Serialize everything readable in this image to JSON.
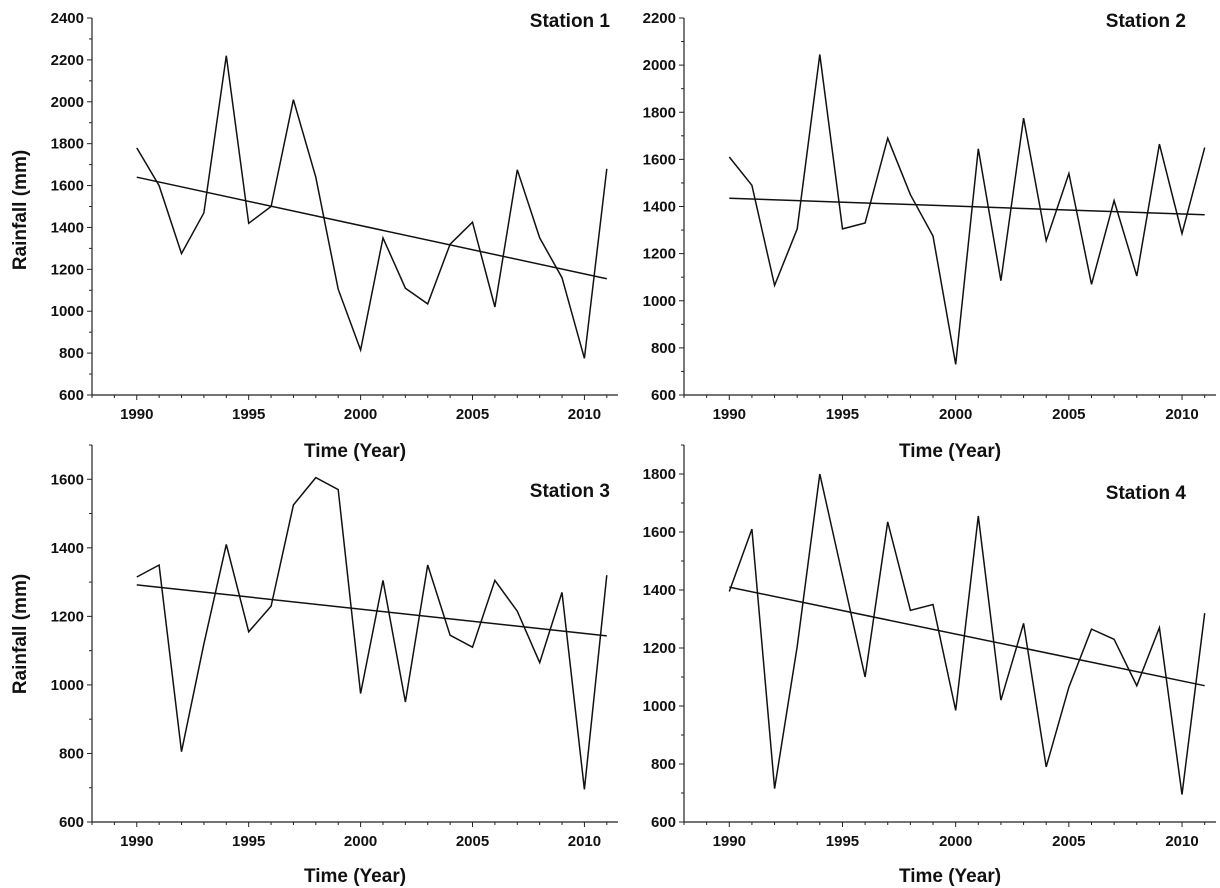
{
  "figure": {
    "ylabel": "Rainfall (mm)",
    "xlabel": "Time (Year)"
  },
  "chart_data": [
    {
      "type": "line",
      "title": "Station 1",
      "xlabel": "Time (Year)",
      "ylabel": "Rainfall (mm)",
      "xlim": [
        1988,
        2011.5
      ],
      "ylim": [
        600,
        2400
      ],
      "xticks": [
        1990,
        1995,
        2000,
        2005,
        2010
      ],
      "yticks": [
        600,
        800,
        1000,
        1200,
        1400,
        1600,
        1800,
        2000,
        2200,
        2400
      ],
      "x": [
        1990,
        1991,
        1992,
        1993,
        1994,
        1995,
        1996,
        1997,
        1998,
        1999,
        2000,
        2001,
        2002,
        2003,
        2004,
        2005,
        2006,
        2007,
        2008,
        2009,
        2010,
        2011
      ],
      "series": [
        {
          "values": [
            1780,
            1600,
            1275,
            1470,
            2220,
            1420,
            1500,
            2010,
            1640,
            1105,
            815,
            1350,
            1110,
            1035,
            1320,
            1425,
            1020,
            1675,
            1350,
            1160,
            775,
            1680
          ]
        }
      ],
      "trend": {
        "x": [
          1990,
          2011
        ],
        "y": [
          1640,
          1155
        ]
      },
      "grid": false,
      "legend": "none"
    },
    {
      "type": "line",
      "title": "Station 2",
      "xlabel": "Time (Year)",
      "ylabel": "",
      "xlim": [
        1988,
        2011.5
      ],
      "ylim": [
        600,
        2200
      ],
      "xticks": [
        1990,
        1995,
        2000,
        2005,
        2010
      ],
      "yticks": [
        600,
        800,
        1000,
        1200,
        1400,
        1600,
        1800,
        2000,
        2200
      ],
      "x": [
        1990,
        1991,
        1992,
        1993,
        1994,
        1995,
        1996,
        1997,
        1998,
        1999,
        2000,
        2001,
        2002,
        2003,
        2004,
        2005,
        2006,
        2007,
        2008,
        2009,
        2010,
        2011
      ],
      "series": [
        {
          "values": [
            1610,
            1490,
            1065,
            1305,
            2045,
            1305,
            1330,
            1690,
            1450,
            1275,
            730,
            1645,
            1085,
            1775,
            1255,
            1540,
            1070,
            1425,
            1105,
            1665,
            1285,
            1650
          ]
        }
      ],
      "trend": {
        "x": [
          1990,
          2011
        ],
        "y": [
          1435,
          1365
        ]
      },
      "grid": false,
      "legend": "none"
    },
    {
      "type": "line",
      "title": "Station 3",
      "xlabel": "Time (Year)",
      "ylabel": "Rainfall (mm)",
      "xlim": [
        1988,
        2011.5
      ],
      "ylim": [
        600,
        1700
      ],
      "xticks": [
        1990,
        1995,
        2000,
        2005,
        2010
      ],
      "yticks": [
        600,
        800,
        1000,
        1200,
        1400,
        1600
      ],
      "x": [
        1990,
        1991,
        1992,
        1993,
        1994,
        1995,
        1996,
        1997,
        1998,
        1999,
        2000,
        2001,
        2002,
        2003,
        2004,
        2005,
        2006,
        2007,
        2008,
        2009,
        2010,
        2011
      ],
      "series": [
        {
          "values": [
            1315,
            1350,
            805,
            1120,
            1410,
            1155,
            1230,
            1525,
            1605,
            1570,
            975,
            1305,
            950,
            1350,
            1145,
            1110,
            1305,
            1215,
            1065,
            1270,
            695,
            1320
          ]
        }
      ],
      "trend": {
        "x": [
          1990,
          2011
        ],
        "y": [
          1292,
          1143
        ]
      },
      "grid": false,
      "legend": "none"
    },
    {
      "type": "line",
      "title": "Station 4",
      "xlabel": "Time (Year)",
      "ylabel": "",
      "xlim": [
        1988,
        2011.5
      ],
      "ylim": [
        600,
        1900
      ],
      "xticks": [
        1990,
        1995,
        2000,
        2005,
        2010
      ],
      "yticks": [
        600,
        800,
        1000,
        1200,
        1400,
        1600,
        1800
      ],
      "x": [
        1990,
        1991,
        1992,
        1993,
        1994,
        1995,
        1996,
        1997,
        1998,
        1999,
        2000,
        2001,
        2002,
        2003,
        2004,
        2005,
        2006,
        2007,
        2008,
        2009,
        2010,
        2011
      ],
      "series": [
        {
          "values": [
            1395,
            1610,
            715,
            1205,
            1800,
            1450,
            1100,
            1635,
            1330,
            1350,
            985,
            1655,
            1020,
            1285,
            790,
            1065,
            1265,
            1230,
            1070,
            1270,
            695,
            1320
          ]
        }
      ],
      "trend": {
        "x": [
          1990,
          2011
        ],
        "y": [
          1410,
          1070
        ]
      },
      "grid": false,
      "legend": "none"
    }
  ]
}
